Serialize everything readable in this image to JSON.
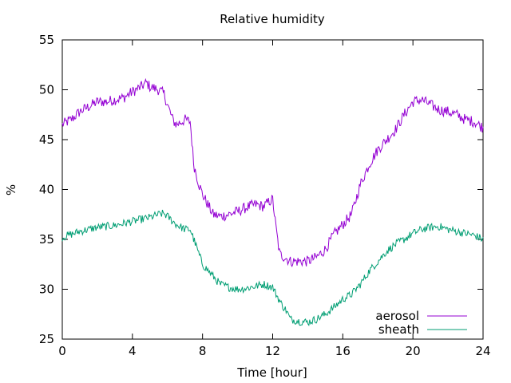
{
  "chart_data": {
    "type": "line",
    "title": "Relative humidity",
    "xlabel": "Time [hour]",
    "ylabel": "%",
    "xlim": [
      0,
      24
    ],
    "ylim": [
      25,
      55
    ],
    "x_ticks": [
      0,
      4,
      8,
      12,
      16,
      20,
      24
    ],
    "y_ticks": [
      25,
      30,
      35,
      40,
      45,
      50,
      55
    ],
    "grid": false,
    "legend_position": "bottom-right",
    "series": [
      {
        "name": "aerosol",
        "color": "#9400d3",
        "x": [
          0,
          0.5,
          1,
          1.5,
          2,
          2.5,
          3,
          3.5,
          4,
          4.5,
          4.8,
          5,
          5.5,
          5.8,
          6,
          6.3,
          6.5,
          7,
          7.3,
          7.5,
          7.8,
          8,
          8.3,
          8.6,
          9,
          9.5,
          10,
          10.5,
          11,
          11.5,
          11.8,
          12,
          12.2,
          12.4,
          12.7,
          13,
          13.5,
          14,
          14.5,
          15,
          15.5,
          16,
          16.5,
          17,
          17.5,
          18,
          18.5,
          19,
          19.5,
          20,
          20.5,
          21,
          21.5,
          22,
          22.5,
          23,
          23.5,
          24
        ],
        "y": [
          46.5,
          47.0,
          47.8,
          48.3,
          48.8,
          48.8,
          49.0,
          49.2,
          49.8,
          50.3,
          50.7,
          50.3,
          50.0,
          49.6,
          48.5,
          47.0,
          46.5,
          47.0,
          46.8,
          42.5,
          40.5,
          39.5,
          38.5,
          37.5,
          37.3,
          37.5,
          37.8,
          38.2,
          38.5,
          38.3,
          38.8,
          39.0,
          36.0,
          33.5,
          33.2,
          32.8,
          32.8,
          32.8,
          33.2,
          34.0,
          35.5,
          36.5,
          37.5,
          40.5,
          42.5,
          44.0,
          45.0,
          46.0,
          47.5,
          48.8,
          49.0,
          48.5,
          48.0,
          47.8,
          47.5,
          47.0,
          46.8,
          46.2
        ]
      },
      {
        "name": "sheath",
        "color": "#009e73",
        "x": [
          0,
          0.5,
          1,
          1.5,
          2,
          2.5,
          3,
          3.5,
          4,
          4.5,
          5,
          5.5,
          5.8,
          6,
          6.5,
          7,
          7.3,
          7.6,
          8,
          8.5,
          9,
          9.5,
          10,
          10.5,
          11,
          11.5,
          12,
          12.2,
          12.5,
          12.8,
          13,
          13.5,
          14,
          14.5,
          15,
          15.5,
          16,
          16.5,
          17,
          17.5,
          18,
          18.5,
          19,
          19.5,
          20,
          20.5,
          21,
          21.5,
          22,
          22.5,
          23,
          23.5,
          24
        ],
        "y": [
          35.2,
          35.5,
          35.8,
          36.0,
          36.2,
          36.3,
          36.4,
          36.6,
          36.8,
          37.0,
          37.2,
          37.5,
          37.6,
          37.3,
          36.5,
          36.0,
          36.0,
          34.5,
          32.5,
          31.5,
          30.5,
          30.2,
          30.0,
          30.1,
          30.3,
          30.5,
          30.2,
          29.5,
          28.5,
          27.8,
          27.0,
          26.8,
          26.7,
          27.0,
          27.5,
          28.2,
          29.0,
          29.5,
          30.5,
          31.8,
          32.8,
          33.8,
          34.5,
          35.0,
          35.6,
          36.0,
          36.2,
          36.3,
          36.0,
          35.8,
          35.6,
          35.4,
          35.0
        ]
      }
    ]
  }
}
